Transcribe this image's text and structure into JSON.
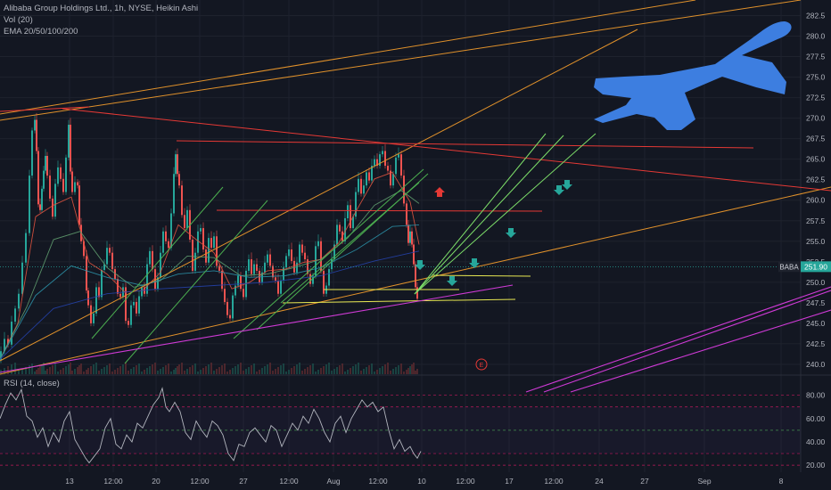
{
  "legend": {
    "title": "Alibaba Group Holdings Ltd., 1h, NYSE, Heikin Ashi",
    "vol": "Vol (20)",
    "ema": "EMA 20/50/100/200"
  },
  "rsi_label": "RSI (14, close)",
  "earnings_marker": "E",
  "colors": {
    "background": "#131722",
    "grid": "#1e222d",
    "up": "#26a69a",
    "down": "#ef5350",
    "price_tag": "#26a69a",
    "rsi_line": "#b2b5be",
    "airplane": "#3d7ee0"
  },
  "chart_data": [
    {
      "type": "candlestick",
      "name": "price",
      "ticker": "BABA",
      "last_price": 251.9,
      "last_price_label": "251.90",
      "y_ticks": [
        240.0,
        242.5,
        245.0,
        247.5,
        250.0,
        252.5,
        255.0,
        257.5,
        260.0,
        262.5,
        265.0,
        267.5,
        270.0,
        272.5,
        275.0,
        277.5,
        280.0,
        282.5
      ],
      "y_tick_labels": [
        "240.0",
        "242.5",
        "245.0",
        "247.5",
        "250.0",
        "252.5",
        "255.0",
        "257.5",
        "260.0",
        "262.5",
        "265.0",
        "267.5",
        "270.0",
        "272.5",
        "275.0",
        "277.5",
        "280.0",
        "282.5"
      ],
      "ylim": [
        238.8,
        284.4
      ],
      "x_tick_labels": [
        "13",
        "12:00",
        "20",
        "12:00",
        "27",
        "12:00",
        "Aug",
        "12:00",
        "10",
        "12:00",
        "17",
        "12:00",
        "24",
        "27",
        "Sep",
        "8"
      ],
      "close_path": [
        [
          0,
          240.5
        ],
        [
          4,
          241.6
        ],
        [
          8,
          243.1
        ],
        [
          12,
          242.4
        ],
        [
          16,
          245.2
        ],
        [
          20,
          246.8
        ],
        [
          24,
          248.6
        ],
        [
          28,
          252.4
        ],
        [
          32,
          256.0
        ],
        [
          35,
          263.0
        ],
        [
          38,
          268.5
        ],
        [
          40,
          269.8
        ],
        [
          42,
          266.0
        ],
        [
          44,
          259.5
        ],
        [
          46,
          258.8
        ],
        [
          48,
          261.4
        ],
        [
          50,
          263.6
        ],
        [
          52,
          265.4
        ],
        [
          55,
          263.0
        ],
        [
          58,
          260.2
        ],
        [
          61,
          258.0
        ],
        [
          64,
          262.0
        ],
        [
          67,
          264.0
        ],
        [
          70,
          262.6
        ],
        [
          73,
          261.0
        ],
        [
          76,
          265.2
        ],
        [
          78,
          269.2
        ],
        [
          80,
          263.5
        ],
        [
          83,
          261.0
        ],
        [
          86,
          262.2
        ],
        [
          88,
          261.8
        ],
        [
          90,
          257.0
        ],
        [
          93,
          255.0
        ],
        [
          96,
          253.2
        ],
        [
          98,
          249.0
        ],
        [
          101,
          247.2
        ],
        [
          104,
          245.0
        ],
        [
          107,
          246.2
        ],
        [
          110,
          249.4
        ],
        [
          113,
          248.2
        ],
        [
          116,
          251.5
        ],
        [
          119,
          252.2
        ],
        [
          122,
          254.2
        ],
        [
          125,
          253.6
        ],
        [
          128,
          251.6
        ],
        [
          131,
          250.4
        ],
        [
          134,
          248.6
        ],
        [
          137,
          248.2
        ],
        [
          140,
          249.4
        ],
        [
          143,
          245.3
        ],
        [
          146,
          244.8
        ],
        [
          149,
          247.2
        ],
        [
          152,
          247.6
        ],
        [
          155,
          246.2
        ],
        [
          158,
          248.3
        ],
        [
          161,
          249.4
        ],
        [
          164,
          248.6
        ],
        [
          167,
          252.2
        ],
        [
          170,
          253.8
        ],
        [
          173,
          251.6
        ],
        [
          176,
          249.2
        ],
        [
          179,
          250.6
        ],
        [
          182,
          253.6
        ],
        [
          185,
          256.2
        ],
        [
          188,
          255.0
        ],
        [
          191,
          254.2
        ],
        [
          194,
          258.4
        ],
        [
          196,
          263.2
        ],
        [
          198,
          265.6
        ],
        [
          200,
          263.2
        ],
        [
          203,
          261.8
        ],
        [
          206,
          258.2
        ],
        [
          209,
          256.6
        ],
        [
          212,
          258.8
        ],
        [
          215,
          255.2
        ],
        [
          218,
          251.4
        ],
        [
          221,
          253.6
        ],
        [
          224,
          256.2
        ],
        [
          227,
          256.6
        ],
        [
          230,
          254.0
        ],
        [
          233,
          252.4
        ],
        [
          236,
          255.4
        ],
        [
          239,
          254.2
        ],
        [
          242,
          255.6
        ],
        [
          245,
          252.0
        ],
        [
          248,
          251.4
        ],
        [
          251,
          249.2
        ],
        [
          254,
          247.6
        ],
        [
          257,
          246.0
        ],
        [
          260,
          245.6
        ],
        [
          263,
          248.4
        ],
        [
          266,
          249.6
        ],
        [
          269,
          250.8
        ],
        [
          272,
          249.2
        ],
        [
          275,
          248.2
        ],
        [
          278,
          251.4
        ],
        [
          281,
          252.8
        ],
        [
          284,
          251.0
        ],
        [
          287,
          252.2
        ],
        [
          290,
          251.4
        ],
        [
          293,
          250.0
        ],
        [
          296,
          251.2
        ],
        [
          299,
          252.4
        ],
        [
          302,
          253.4
        ],
        [
          305,
          252.0
        ],
        [
          308,
          250.6
        ],
        [
          311,
          250.2
        ],
        [
          314,
          248.6
        ],
        [
          317,
          250.2
        ],
        [
          320,
          251.8
        ],
        [
          323,
          253.2
        ],
        [
          326,
          254.0
        ],
        [
          329,
          252.6
        ],
        [
          332,
          251.2
        ],
        [
          335,
          252.4
        ],
        [
          338,
          254.6
        ],
        [
          341,
          253.6
        ],
        [
          344,
          252.8
        ],
        [
          347,
          251.0
        ],
        [
          350,
          249.8
        ],
        [
          353,
          250.8
        ],
        [
          356,
          254.4
        ],
        [
          359,
          255.0
        ],
        [
          362,
          251.4
        ],
        [
          365,
          248.6
        ],
        [
          368,
          249.6
        ],
        [
          371,
          251.6
        ],
        [
          374,
          252.8
        ],
        [
          377,
          254.6
        ],
        [
          380,
          257.0
        ],
        [
          383,
          256.2
        ],
        [
          386,
          255.0
        ],
        [
          389,
          257.8
        ],
        [
          392,
          259.4
        ],
        [
          395,
          256.6
        ],
        [
          398,
          258.0
        ],
        [
          401,
          261.0
        ],
        [
          404,
          262.6
        ],
        [
          407,
          260.8
        ],
        [
          410,
          261.8
        ],
        [
          413,
          263.4
        ],
        [
          416,
          262.4
        ],
        [
          419,
          264.2
        ],
        [
          422,
          265.0
        ],
        [
          425,
          264.2
        ],
        [
          428,
          265.6
        ],
        [
          431,
          266.0
        ],
        [
          434,
          264.2
        ],
        [
          437,
          263.6
        ],
        [
          440,
          261.8
        ],
        [
          443,
          263.2
        ],
        [
          446,
          265.2
        ],
        [
          449,
          265.6
        ],
        [
          452,
          263.0
        ],
        [
          455,
          259.6
        ],
        [
          457,
          257.0
        ],
        [
          459,
          254.8
        ],
        [
          461,
          256.2
        ],
        [
          463,
          254.6
        ],
        [
          465,
          252.2
        ],
        [
          467,
          249.4
        ],
        [
          469,
          248.0
        ]
      ],
      "ema_20": [
        [
          0,
          240.6
        ],
        [
          20,
          245.0
        ],
        [
          40,
          258.0
        ],
        [
          60,
          259.4
        ],
        [
          80,
          260.4
        ],
        [
          100,
          252.4
        ],
        [
          120,
          251.0
        ],
        [
          140,
          248.8
        ],
        [
          160,
          249.0
        ],
        [
          180,
          251.2
        ],
        [
          200,
          257.0
        ],
        [
          220,
          255.2
        ],
        [
          240,
          253.6
        ],
        [
          260,
          249.2
        ],
        [
          280,
          250.0
        ],
        [
          300,
          251.4
        ],
        [
          320,
          251.6
        ],
        [
          340,
          252.4
        ],
        [
          360,
          252.8
        ],
        [
          380,
          254.8
        ],
        [
          400,
          258.8
        ],
        [
          420,
          262.6
        ],
        [
          440,
          263.4
        ],
        [
          460,
          259.8
        ],
        [
          470,
          254.6
        ]
      ],
      "ema_50": [
        [
          0,
          240.6
        ],
        [
          30,
          247.0
        ],
        [
          60,
          255.2
        ],
        [
          90,
          256.2
        ],
        [
          120,
          251.8
        ],
        [
          150,
          249.4
        ],
        [
          180,
          250.2
        ],
        [
          210,
          253.2
        ],
        [
          240,
          253.0
        ],
        [
          270,
          250.8
        ],
        [
          300,
          251.0
        ],
        [
          330,
          251.8
        ],
        [
          360,
          252.8
        ],
        [
          390,
          255.4
        ],
        [
          420,
          259.4
        ],
        [
          450,
          261.2
        ],
        [
          470,
          259.6
        ]
      ],
      "ema_100": [
        [
          0,
          240.6
        ],
        [
          40,
          248.4
        ],
        [
          80,
          252.0
        ],
        [
          120,
          250.6
        ],
        [
          160,
          249.6
        ],
        [
          200,
          251.0
        ],
        [
          240,
          251.4
        ],
        [
          280,
          250.6
        ],
        [
          320,
          250.8
        ],
        [
          360,
          251.8
        ],
        [
          400,
          254.0
        ],
        [
          440,
          256.8
        ],
        [
          470,
          257.0
        ]
      ],
      "ema_200": [
        [
          0,
          240.6
        ],
        [
          60,
          246.8
        ],
        [
          120,
          248.6
        ],
        [
          180,
          249.2
        ],
        [
          240,
          249.6
        ],
        [
          300,
          250.0
        ],
        [
          360,
          250.8
        ],
        [
          420,
          252.6
        ],
        [
          470,
          253.8
        ]
      ],
      "rsi_close": [
        [
          0,
          60
        ],
        [
          6,
          72
        ],
        [
          12,
          82
        ],
        [
          18,
          76
        ],
        [
          24,
          85
        ],
        [
          30,
          62
        ],
        [
          36,
          58
        ],
        [
          42,
          44
        ],
        [
          48,
          52
        ],
        [
          54,
          36
        ],
        [
          60,
          48
        ],
        [
          66,
          40
        ],
        [
          72,
          58
        ],
        [
          78,
          66
        ],
        [
          84,
          42
        ],
        [
          90,
          34
        ],
        [
          96,
          26
        ],
        [
          100,
          22
        ],
        [
          106,
          28
        ],
        [
          112,
          34
        ],
        [
          118,
          52
        ],
        [
          124,
          60
        ],
        [
          130,
          38
        ],
        [
          136,
          34
        ],
        [
          142,
          46
        ],
        [
          148,
          40
        ],
        [
          154,
          56
        ],
        [
          160,
          52
        ],
        [
          166,
          62
        ],
        [
          172,
          72
        ],
        [
          178,
          78
        ],
        [
          182,
          86
        ],
        [
          186,
          70
        ],
        [
          190,
          66
        ],
        [
          196,
          74
        ],
        [
          202,
          66
        ],
        [
          208,
          48
        ],
        [
          214,
          42
        ],
        [
          220,
          58
        ],
        [
          226,
          50
        ],
        [
          232,
          44
        ],
        [
          238,
          58
        ],
        [
          244,
          54
        ],
        [
          250,
          46
        ],
        [
          256,
          30
        ],
        [
          262,
          24
        ],
        [
          268,
          38
        ],
        [
          274,
          36
        ],
        [
          280,
          48
        ],
        [
          286,
          52
        ],
        [
          292,
          46
        ],
        [
          298,
          40
        ],
        [
          304,
          54
        ],
        [
          310,
          50
        ],
        [
          316,
          36
        ],
        [
          322,
          46
        ],
        [
          328,
          56
        ],
        [
          334,
          50
        ],
        [
          340,
          62
        ],
        [
          346,
          56
        ],
        [
          352,
          68
        ],
        [
          358,
          60
        ],
        [
          364,
          48
        ],
        [
          370,
          40
        ],
        [
          376,
          56
        ],
        [
          382,
          62
        ],
        [
          388,
          48
        ],
        [
          394,
          60
        ],
        [
          400,
          68
        ],
        [
          406,
          76
        ],
        [
          412,
          70
        ],
        [
          418,
          74
        ],
        [
          424,
          66
        ],
        [
          430,
          70
        ],
        [
          436,
          50
        ],
        [
          442,
          34
        ],
        [
          448,
          42
        ],
        [
          454,
          32
        ],
        [
          460,
          36
        ],
        [
          464,
          30
        ],
        [
          468,
          26
        ],
        [
          472,
          32
        ]
      ],
      "rsi_levels": [
        20,
        30,
        50,
        70,
        80
      ],
      "rsi_tick_labels": [
        "80.00",
        "60.00",
        "40.00",
        "20.00"
      ],
      "rsi_ylim": [
        14,
        92
      ]
    }
  ]
}
